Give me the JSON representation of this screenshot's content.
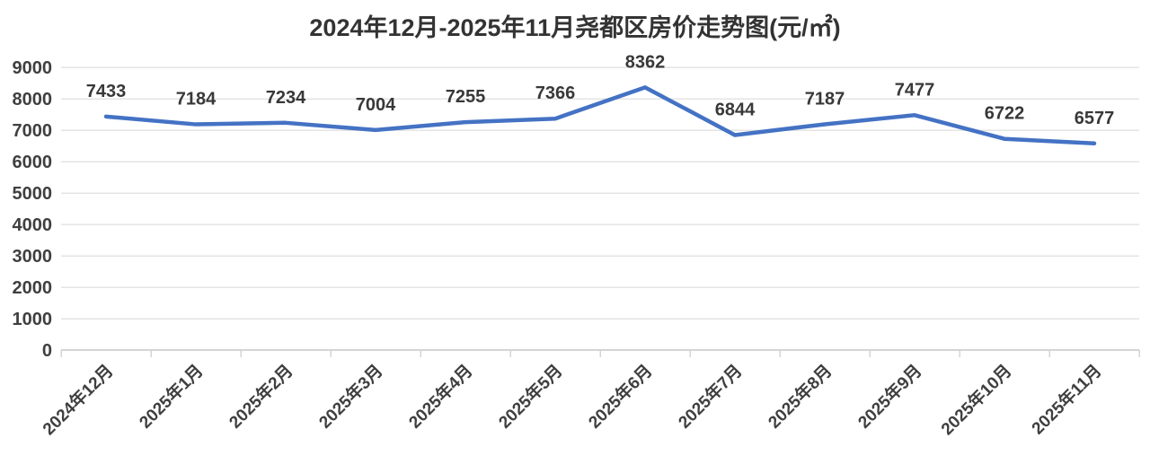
{
  "chart_data": {
    "type": "line",
    "title": "2024年12月-2025年11月尧都区房价走势图(元/㎡)",
    "categories": [
      "2024年12月",
      "2025年1月",
      "2025年2月",
      "2025年3月",
      "2025年4月",
      "2025年5月",
      "2025年6月",
      "2025年7月",
      "2025年8月",
      "2025年9月",
      "2025年10月",
      "2025年11月"
    ],
    "values": [
      7433,
      7184,
      7234,
      7004,
      7255,
      7366,
      8362,
      6844,
      7187,
      7477,
      6722,
      6577
    ],
    "xlabel": "",
    "ylabel": "",
    "ylim": [
      0,
      9000
    ],
    "yticks": [
      0,
      1000,
      2000,
      3000,
      4000,
      5000,
      6000,
      7000,
      8000,
      9000
    ],
    "grid": true,
    "legend": "none",
    "data_labels": true,
    "x_label_rotation_deg": 45,
    "colors": {
      "line": "#4472C4",
      "title_text": "#333333",
      "tick_text": "#3F3F3F",
      "data_label_text": "#383838",
      "gridline": "#E4E4E4",
      "axis_line": "#D4D4D4",
      "background": "#FFFFFF"
    }
  }
}
